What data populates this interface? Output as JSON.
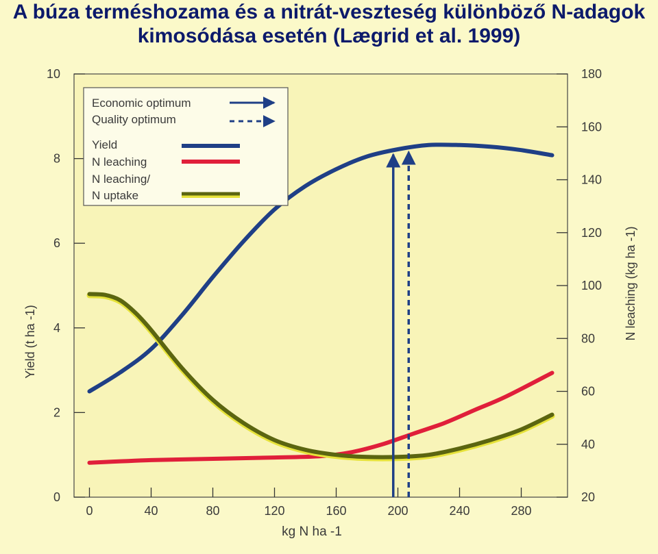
{
  "slide": {
    "title_line1": "A búza terméshozama és a nitrát-veszteség különböző N-adagok",
    "title_line2": "kimosódása esetén (Lægrid et al. 1999)"
  },
  "colors": {
    "background": "#fbf9c9",
    "plot_area": "#f8f4b8",
    "title": "#0c1a6b",
    "yield": "#1f3f86",
    "leaching": "#e01f3a",
    "ratio": "#5b6510",
    "ratio_highlight": "#e6e23a",
    "arrow": "#1f3f86"
  },
  "chart_data": {
    "type": "line",
    "xlabel": "kg N ha -1",
    "ylabel_left": "Yield (t ha -1)",
    "ylabel_right": "N leaching (kg ha -1)",
    "xlim": [
      -10,
      310
    ],
    "ylim_left": [
      0,
      10
    ],
    "ylim_right": [
      20,
      180
    ],
    "xticks": [
      0,
      40,
      80,
      120,
      160,
      200,
      240,
      280
    ],
    "yticks_left": [
      0,
      2,
      4,
      6,
      8,
      10
    ],
    "yticks_right": [
      20,
      40,
      60,
      80,
      100,
      120,
      140,
      160,
      180
    ],
    "grid": false,
    "legend_position": "top-left",
    "legend": {
      "economic_optimum": "Economic optimum",
      "quality_optimum": "Quality optimum",
      "yield": "Yield",
      "leaching": "N leaching",
      "ratio_line1": "N leaching/",
      "ratio_line2": "N uptake"
    },
    "series": [
      {
        "name": "Yield",
        "axis": "left",
        "x": [
          0,
          20,
          40,
          60,
          80,
          100,
          120,
          140,
          160,
          180,
          200,
          220,
          240,
          260,
          280,
          300
        ],
        "values": [
          2.5,
          2.95,
          3.5,
          4.3,
          5.2,
          6.05,
          6.8,
          7.35,
          7.75,
          8.05,
          8.22,
          8.32,
          8.32,
          8.28,
          8.2,
          8.08
        ]
      },
      {
        "name": "N leaching",
        "axis": "right",
        "x": [
          0,
          40,
          80,
          120,
          150,
          170,
          190,
          210,
          230,
          250,
          270,
          300
        ],
        "values": [
          33,
          34,
          34.5,
          35,
          35.5,
          37,
          40,
          44,
          48,
          53,
          58,
          67
        ]
      },
      {
        "name": "N leaching/ N uptake",
        "axis": "left",
        "x": [
          0,
          10,
          20,
          30,
          40,
          60,
          80,
          100,
          120,
          140,
          160,
          180,
          200,
          220,
          240,
          260,
          280,
          300
        ],
        "values": [
          4.8,
          4.78,
          4.65,
          4.35,
          3.95,
          3.05,
          2.3,
          1.75,
          1.35,
          1.12,
          1.0,
          0.95,
          0.95,
          1.0,
          1.15,
          1.35,
          1.6,
          1.95
        ]
      }
    ],
    "annotations": [
      {
        "name": "Economic optimum",
        "x": 197,
        "style": "solid"
      },
      {
        "name": "Quality optimum",
        "x": 207,
        "style": "dashed"
      }
    ]
  }
}
